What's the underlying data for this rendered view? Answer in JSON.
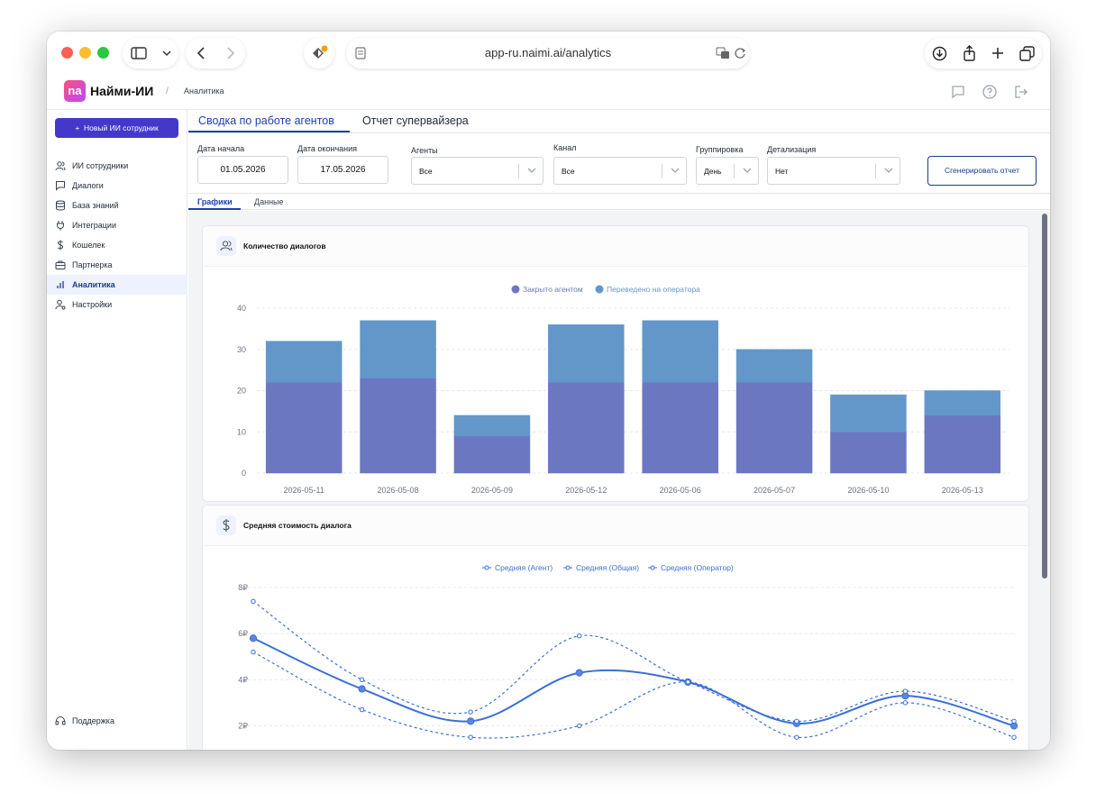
{
  "browser": {
    "url": "app-ru.naimi.ai/analytics",
    "colors": {
      "close": "#ff5f57",
      "minimize": "#febc2e",
      "zoom": "#28c840"
    }
  },
  "header": {
    "logo_text": "na",
    "brand": "Найми-ИИ",
    "breadcrumb": "Аналитика"
  },
  "sidebar": {
    "new_button": "Новый ИИ сотрудник",
    "items": [
      {
        "label": "ИИ сотрудники",
        "icon": "users-icon"
      },
      {
        "label": "Диалоги",
        "icon": "chat-icon"
      },
      {
        "label": "База знаний",
        "icon": "database-icon"
      },
      {
        "label": "Интеграции",
        "icon": "plug-icon"
      },
      {
        "label": "Кошелек",
        "icon": "dollar-icon"
      },
      {
        "label": "Партнерка",
        "icon": "briefcase-icon"
      },
      {
        "label": "Аналитика",
        "icon": "bar-chart-icon",
        "active": true
      },
      {
        "label": "Настройки",
        "icon": "user-settings-icon"
      }
    ],
    "support": "Поддержка"
  },
  "tabs": {
    "summary": "Сводка по работе агентов",
    "supervisor": "Отчет супервайзера"
  },
  "filters": {
    "start_label": "Дата начала",
    "start_value": "01.05.2026",
    "end_label": "Дата окончания",
    "end_value": "17.05.2026",
    "agents_label": "Агенты",
    "agents_value": "Все",
    "channel_label": "Канал",
    "channel_value": "Все",
    "group_label": "Группировка",
    "group_value": "День",
    "detail_label": "Детализация",
    "detail_value": "Нет",
    "generate": "Сгенерировать отчет"
  },
  "subtabs": {
    "charts": "Графики",
    "data": "Данные"
  },
  "cards": {
    "dialogs_title": "Количество диалогов",
    "cost_title": "Средняя стоимость диалога"
  },
  "chart_data": [
    {
      "type": "bar",
      "stacked": true,
      "title": "Количество диалогов",
      "categories": [
        "2026-05-11",
        "2026-05-08",
        "2026-05-09",
        "2026-05-12",
        "2026-05-06",
        "2026-05-07",
        "2026-05-10",
        "2026-05-13"
      ],
      "series": [
        {
          "name": "Закрыто агентом",
          "color": "#6b77c1",
          "values": [
            22,
            23,
            9,
            22,
            22,
            22,
            10,
            14
          ]
        },
        {
          "name": "Переведено на оператора",
          "color": "#6497c9",
          "values": [
            10,
            14,
            5,
            14,
            15,
            8,
            9,
            6
          ]
        }
      ],
      "yticks": [
        "0",
        "10",
        "20",
        "30",
        "40"
      ],
      "ylim": [
        0,
        40
      ],
      "grid": true,
      "legend": "top-center"
    },
    {
      "type": "line",
      "title": "Средняя стоимость диалога",
      "categories": [
        "2026-05-11",
        "2026-05-08",
        "2026-05-09",
        "2026-05-12",
        "2026-05-06",
        "2026-05-07",
        "2026-05-10",
        "2026-05-13"
      ],
      "series": [
        {
          "name": "Средняя (Агент)",
          "color": "#3b6fd6",
          "dashed": true,
          "values": [
            5.2,
            2.7,
            1.5,
            2.0,
            3.9,
            1.5,
            3.0,
            1.5
          ]
        },
        {
          "name": "Средняя (Общая)",
          "color": "#3b6fd6",
          "dashed": false,
          "values": [
            5.8,
            3.6,
            2.2,
            4.3,
            3.9,
            2.1,
            3.3,
            2.0
          ]
        },
        {
          "name": "Средняя (Оператор)",
          "color": "#3b6fd6",
          "dashed": true,
          "values": [
            7.4,
            4.0,
            2.6,
            5.9,
            3.9,
            2.2,
            3.5,
            2.2
          ]
        }
      ],
      "yticks": [
        "2₽",
        "4₽",
        "6₽",
        "8₽"
      ],
      "ylim": [
        1,
        8
      ],
      "grid": true,
      "legend": "top-center"
    }
  ]
}
